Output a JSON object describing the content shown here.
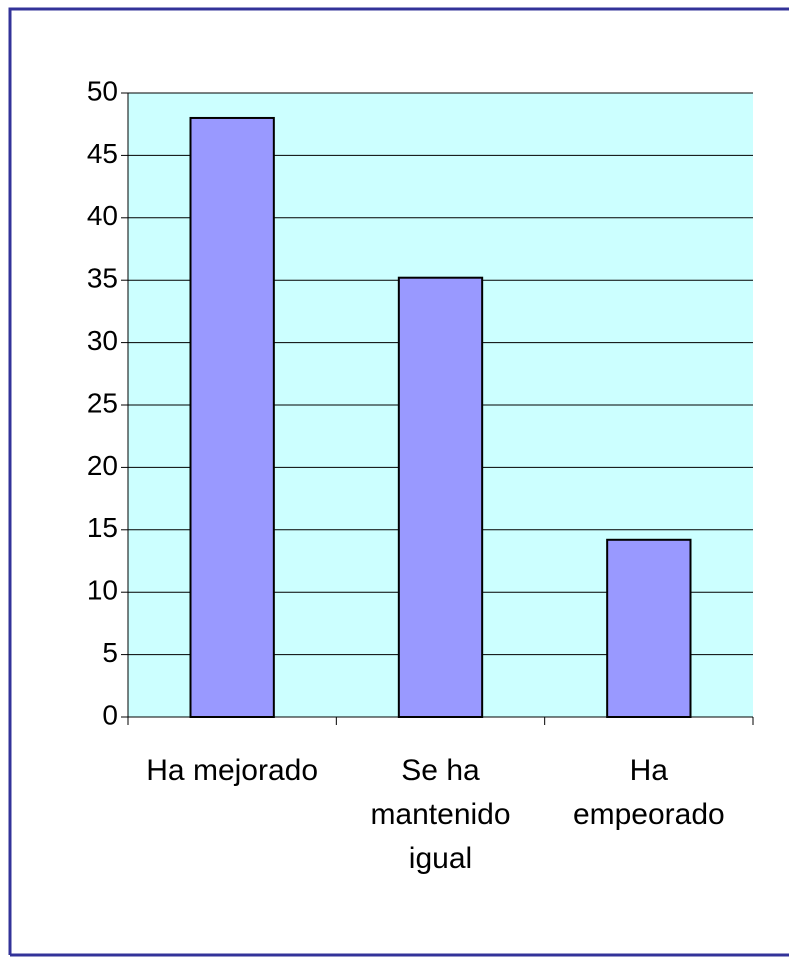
{
  "chart_data": {
    "type": "bar",
    "categories": [
      "Ha mejorado",
      "Se ha mantenido igual",
      "Ha empeorado"
    ],
    "values": [
      48,
      35.2,
      14.2
    ],
    "color": "#9999ff",
    "ylim": [
      0,
      50
    ],
    "yticks": [
      0,
      5,
      10,
      15,
      20,
      25,
      30,
      35,
      40,
      45,
      50
    ],
    "grid": true
  }
}
